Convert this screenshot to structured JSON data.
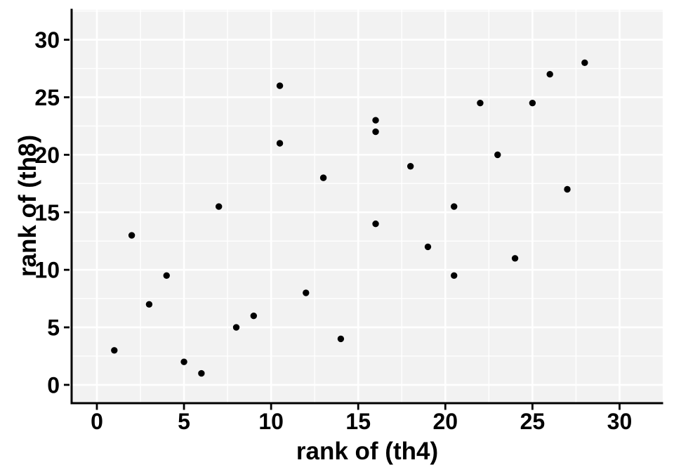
{
  "chart_data": {
    "type": "scatter",
    "title": "",
    "xlabel": "rank of (th4)",
    "ylabel": "rank of (th8)",
    "x_ticks": [
      0,
      5,
      10,
      15,
      20,
      25,
      30
    ],
    "y_ticks": [
      0,
      5,
      10,
      15,
      20,
      25,
      30
    ],
    "x_tick_labels": [
      "0",
      "5",
      "10",
      "15",
      "20",
      "25",
      "30"
    ],
    "y_tick_labels": [
      "0",
      "5",
      "10",
      "15",
      "20",
      "25",
      "30"
    ],
    "xlim": [
      -1.45,
      32.5
    ],
    "ylim": [
      -1.5,
      32.6
    ],
    "minor_grid_step": 2.5,
    "grid": true,
    "legend": false,
    "points": [
      [
        1,
        3
      ],
      [
        2,
        13
      ],
      [
        3,
        7
      ],
      [
        4,
        9.5
      ],
      [
        5,
        2
      ],
      [
        6,
        1
      ],
      [
        7,
        15.5
      ],
      [
        8,
        5
      ],
      [
        9,
        6
      ],
      [
        10.5,
        21
      ],
      [
        10.5,
        26
      ],
      [
        12,
        8
      ],
      [
        13,
        18
      ],
      [
        14,
        4
      ],
      [
        16,
        14
      ],
      [
        16,
        22
      ],
      [
        16,
        23
      ],
      [
        18,
        19
      ],
      [
        19,
        12
      ],
      [
        20.5,
        9.5
      ],
      [
        20.5,
        15.5
      ],
      [
        22,
        24.5
      ],
      [
        23,
        20
      ],
      [
        24,
        11
      ],
      [
        25,
        24.5
      ],
      [
        26,
        27
      ],
      [
        27,
        17
      ],
      [
        28,
        28
      ]
    ],
    "colors": {
      "point": "#000000",
      "panel_background": "#f2f2f2",
      "grid_major": "#ffffff",
      "grid_minor": "#ffffff",
      "axis_line": "#000000",
      "tick_mark": "#000000",
      "text": "#000000",
      "figure_background": "#ffffff"
    }
  }
}
